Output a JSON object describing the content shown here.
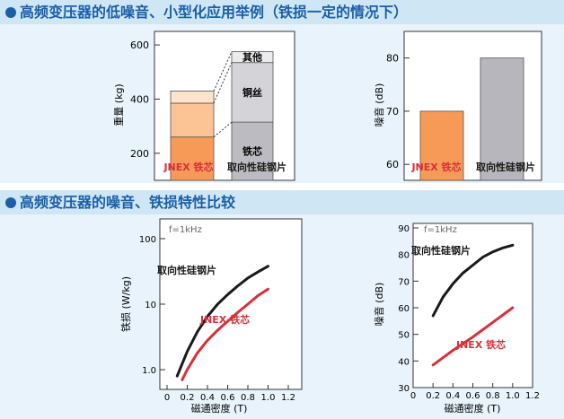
{
  "sections": [
    {
      "title": "高频变压器的低噪音、小型化应用举例（铁损一定的情况下）"
    },
    {
      "title": "高频变压器的噪音、铁损特性比较"
    }
  ],
  "colors": {
    "jnex": "#f79a57",
    "silicon": "#b6b6bc",
    "jnex_line": "#d8303a",
    "silicon_line": "#1a1a1a",
    "header_bg": "#cfe6f5",
    "panel_bg": "#e8f3fb",
    "title": "#1a5fa8"
  },
  "chart_data": [
    {
      "type": "bar",
      "title": "",
      "ylabel": "重量 (kg)",
      "ylim": [
        100,
        650
      ],
      "yticks": [
        200,
        400,
        600
      ],
      "categories": [
        "JNEX 铁芯",
        "取向性硅钢片"
      ],
      "category_colors": [
        "#d8303a",
        "#1a1a1a"
      ],
      "stacks": [
        [
          {
            "name": "铁芯",
            "value": 260
          },
          {
            "name": "铜丝",
            "value": 125
          },
          {
            "name": "其他",
            "value": 45
          }
        ],
        [
          {
            "name": "铁芯",
            "value": 315
          },
          {
            "name": "铜丝",
            "value": 220
          },
          {
            "name": "其他",
            "value": 40
          }
        ]
      ],
      "segment_labels": {
        "core": "铁芯",
        "copper": "铜丝",
        "other": "其他"
      }
    },
    {
      "type": "bar",
      "ylabel": "噪音 (dB)",
      "ylim": [
        57,
        85
      ],
      "yticks": [
        60,
        70,
        80
      ],
      "categories": [
        "JNEX 铁芯",
        "取向性硅钢片"
      ],
      "values": [
        70,
        80
      ]
    },
    {
      "type": "line",
      "yscale": "log",
      "xlabel": "磁通密度 (T)",
      "ylabel": "铁损 (W/kg)",
      "xlim": [
        0,
        1.2
      ],
      "xticks": [
        "0",
        "0.2",
        "0.4",
        "0.6",
        "0.8",
        "1.0",
        "1.2"
      ],
      "yticks": [
        1.0,
        10,
        100
      ],
      "ytick_labels": [
        "1.0",
        "10",
        "100"
      ],
      "annotation": "f=1kHz",
      "series": [
        {
          "name": "取向性硅钢片",
          "x": [
            0.1,
            0.2,
            0.3,
            0.4,
            0.5,
            0.6,
            0.7,
            0.8,
            0.9,
            1.0
          ],
          "y": [
            0.8,
            1.9,
            3.8,
            6.5,
            10,
            14,
            19,
            25,
            31,
            38
          ]
        },
        {
          "name": "JNEX 铁芯",
          "x": [
            0.15,
            0.2,
            0.3,
            0.4,
            0.5,
            0.6,
            0.7,
            0.8,
            0.9,
            1.0
          ],
          "y": [
            0.7,
            1.0,
            1.8,
            2.8,
            4.0,
            5.5,
            7.5,
            10,
            13.5,
            17
          ]
        }
      ]
    },
    {
      "type": "line",
      "xlabel": "磁通密度 (T)",
      "ylabel": "噪音 (dB)",
      "xlim": [
        0,
        1.2
      ],
      "ylim": [
        30,
        90
      ],
      "xticks": [
        "0",
        "0.2",
        "0.4",
        "0.6",
        "0.8",
        "1.0",
        "1.2"
      ],
      "yticks": [
        30,
        40,
        50,
        60,
        70,
        80,
        90
      ],
      "annotation": "f=1kHz",
      "series": [
        {
          "name": "取向性硅钢片",
          "x": [
            0.2,
            0.3,
            0.4,
            0.5,
            0.6,
            0.7,
            0.8,
            0.9,
            1.0
          ],
          "y": [
            57,
            64,
            69,
            73,
            76,
            79,
            81,
            82.5,
            83.5
          ]
        },
        {
          "name": "JNEX 铁芯",
          "x": [
            0.2,
            0.4,
            0.6,
            0.8,
            1.0
          ],
          "y": [
            38.5,
            44,
            49,
            54.5,
            60
          ]
        }
      ]
    }
  ]
}
